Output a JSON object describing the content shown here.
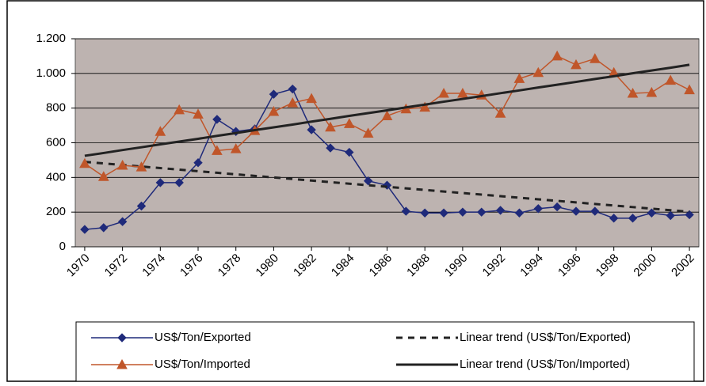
{
  "chart_data": {
    "type": "line",
    "x": [
      1970,
      1971,
      1972,
      1973,
      1974,
      1975,
      1976,
      1977,
      1978,
      1979,
      1980,
      1981,
      1982,
      1983,
      1984,
      1985,
      1986,
      1987,
      1988,
      1989,
      1990,
      1991,
      1992,
      1993,
      1994,
      1995,
      1996,
      1997,
      1998,
      1999,
      2000,
      2001,
      2002
    ],
    "xlim": [
      1969.5,
      2002.5
    ],
    "xticks": [
      1970,
      1972,
      1974,
      1976,
      1978,
      1980,
      1982,
      1984,
      1986,
      1988,
      1990,
      1992,
      1994,
      1996,
      1998,
      2000,
      2002
    ],
    "ylim": [
      0,
      1200
    ],
    "yticks": [
      0,
      200,
      400,
      600,
      800,
      {
        "value": 1000,
        "label": "1.000"
      },
      {
        "value": 1200,
        "label": "1.200"
      }
    ],
    "grid": true,
    "legend": "bottom",
    "series": [
      {
        "name": "US$/Ton/Exported",
        "color": "#1f2a7a",
        "marker": "diamond",
        "dash": false,
        "values": [
          100,
          110,
          145,
          235,
          370,
          370,
          485,
          735,
          665,
          680,
          880,
          910,
          675,
          570,
          545,
          380,
          355,
          205,
          195,
          195,
          200,
          200,
          210,
          195,
          220,
          230,
          205,
          205,
          165,
          165,
          195,
          180,
          185
        ]
      },
      {
        "name": "Linear trend (US$/Ton/Exported)",
        "color": "#222222",
        "marker": "none",
        "dash": true,
        "values": [
          490,
          481,
          472,
          463,
          454,
          445,
          436,
          427,
          418,
          409,
          400,
          391,
          382,
          373,
          364,
          355,
          346,
          337,
          328,
          319,
          310,
          301,
          292,
          283,
          274,
          265,
          256,
          247,
          238,
          229,
          220,
          211,
          202
        ]
      },
      {
        "name": "US$/Ton/Imported",
        "color": "#c0562a",
        "marker": "triangle",
        "dash": false,
        "values": [
          480,
          405,
          470,
          460,
          665,
          790,
          765,
          555,
          565,
          670,
          780,
          830,
          855,
          690,
          710,
          655,
          755,
          795,
          805,
          885,
          885,
          875,
          770,
          970,
          1005,
          1100,
          1050,
          1085,
          1005,
          885,
          890,
          960,
          905
        ]
      },
      {
        "name": "Linear trend (US$/Ton/Imported)",
        "color": "#222222",
        "marker": "none",
        "dash": false,
        "values": [
          525,
          541,
          558,
          574,
          591,
          607,
          623,
          640,
          656,
          673,
          689,
          705,
          722,
          738,
          755,
          771,
          787,
          804,
          820,
          837,
          853,
          869,
          886,
          902,
          919,
          935,
          951,
          968,
          984,
          1001,
          1017,
          1033,
          1050
        ]
      }
    ]
  }
}
